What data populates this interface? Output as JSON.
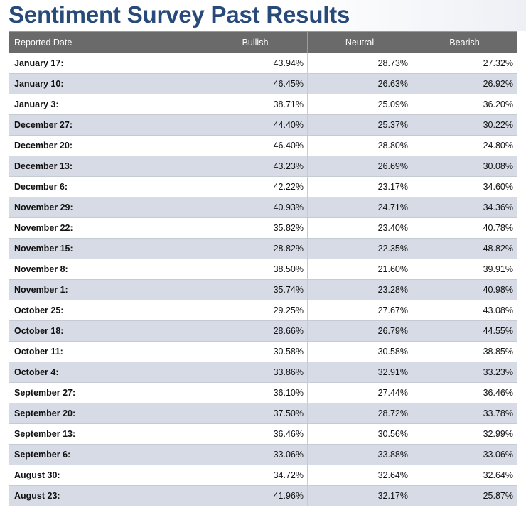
{
  "page": {
    "title": "Sentiment Survey Past Results"
  },
  "table": {
    "headers": [
      "Reported Date",
      "Bullish",
      "Neutral",
      "Bearish"
    ],
    "rows": [
      [
        "January 17:",
        "43.94%",
        "28.73%",
        "27.32%"
      ],
      [
        "January 10:",
        "46.45%",
        "26.63%",
        "26.92%"
      ],
      [
        "January 3:",
        "38.71%",
        "25.09%",
        "36.20%"
      ],
      [
        "December 27:",
        "44.40%",
        "25.37%",
        "30.22%"
      ],
      [
        "December 20:",
        "46.40%",
        "28.80%",
        "24.80%"
      ],
      [
        "December 13:",
        "43.23%",
        "26.69%",
        "30.08%"
      ],
      [
        "December 6:",
        "42.22%",
        "23.17%",
        "34.60%"
      ],
      [
        "November 29:",
        "40.93%",
        "24.71%",
        "34.36%"
      ],
      [
        "November 22:",
        "35.82%",
        "23.40%",
        "40.78%"
      ],
      [
        "November 15:",
        "28.82%",
        "22.35%",
        "48.82%"
      ],
      [
        "November 8:",
        "38.50%",
        "21.60%",
        "39.91%"
      ],
      [
        "November 1:",
        "35.74%",
        "23.28%",
        "40.98%"
      ],
      [
        "October 25:",
        "29.25%",
        "27.67%",
        "43.08%"
      ],
      [
        "October 18:",
        "28.66%",
        "26.79%",
        "44.55%"
      ],
      [
        "October 11:",
        "30.58%",
        "30.58%",
        "38.85%"
      ],
      [
        "October 4:",
        "33.86%",
        "32.91%",
        "33.23%"
      ],
      [
        "September 27:",
        "36.10%",
        "27.44%",
        "36.46%"
      ],
      [
        "September 20:",
        "37.50%",
        "28.72%",
        "33.78%"
      ],
      [
        "September 13:",
        "36.46%",
        "30.56%",
        "32.99%"
      ],
      [
        "September 6:",
        "33.06%",
        "33.88%",
        "33.06%"
      ],
      [
        "August 30:",
        "34.72%",
        "32.64%",
        "32.64%"
      ],
      [
        "August 23:",
        "41.96%",
        "32.17%",
        "25.87%"
      ]
    ]
  }
}
